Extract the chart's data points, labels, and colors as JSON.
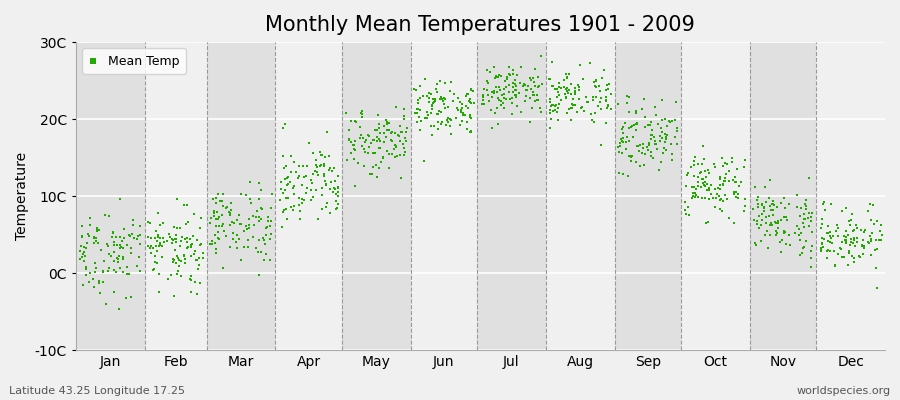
{
  "title": "Monthly Mean Temperatures 1901 - 2009",
  "ylabel": "Temperature",
  "xlabel_bottom_left": "Latitude 43.25 Longitude 17.25",
  "xlabel_bottom_right": "worldspecies.org",
  "legend_label": "Mean Temp",
  "ylim": [
    -10,
    30
  ],
  "yticks": [
    -10,
    0,
    10,
    20,
    30
  ],
  "ytick_labels": [
    "-10C",
    "0C",
    "10C",
    "20C",
    "30C"
  ],
  "months": [
    "Jan",
    "Feb",
    "Mar",
    "Apr",
    "May",
    "Jun",
    "Jul",
    "Aug",
    "Sep",
    "Oct",
    "Nov",
    "Dec"
  ],
  "mean_temps": [
    2.5,
    3.0,
    6.5,
    11.5,
    17.0,
    21.5,
    23.5,
    23.0,
    17.5,
    11.5,
    7.0,
    5.0
  ],
  "temp_spread": [
    2.8,
    2.5,
    2.5,
    2.3,
    2.0,
    1.8,
    1.8,
    1.8,
    2.0,
    2.0,
    2.2,
    2.2
  ],
  "n_years": 109,
  "dot_color": "#22aa00",
  "dot_size": 4,
  "background_color_light": "#f0f0f0",
  "background_color_dark": "#e0e0e0",
  "title_fontsize": 15,
  "axis_label_fontsize": 10,
  "tick_fontsize": 10,
  "legend_fontsize": 9
}
